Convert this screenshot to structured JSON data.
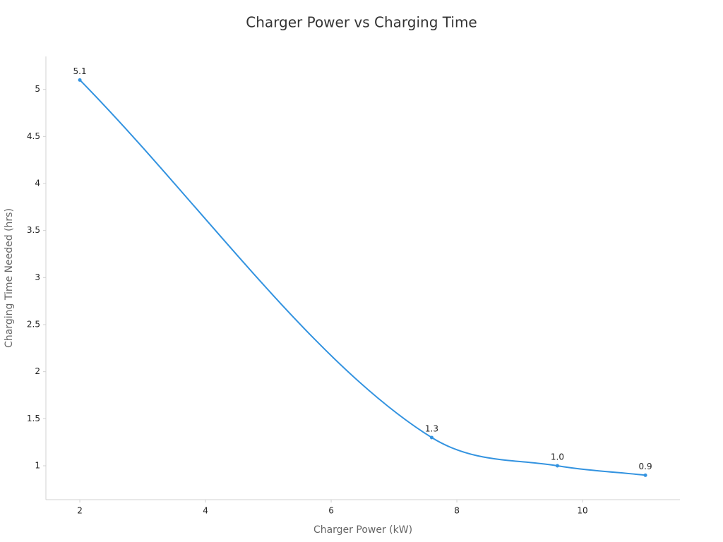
{
  "chart_data": {
    "type": "line",
    "title": "Charger Power vs Charging Time",
    "x_label": "Charger Power (kW)",
    "y_label": "Charging Time Needed (hrs)",
    "x": [
      2,
      7.6,
      9.6,
      11
    ],
    "series": [
      {
        "color": "#3393e0",
        "values": [
          5.1,
          1.3,
          1.0,
          0.9
        ],
        "value_labels": [
          "5.1",
          "1.3",
          "1.0",
          "0.9"
        ]
      }
    ],
    "xlim": [
      1.46,
      11.55
    ],
    "xticks": [
      2,
      4,
      6,
      8,
      10
    ],
    "ylim": [
      0.64,
      5.35
    ],
    "yticks": [
      1,
      1.5,
      2,
      2.5,
      3,
      3.5,
      4,
      4.5,
      5
    ],
    "grid": false
  }
}
